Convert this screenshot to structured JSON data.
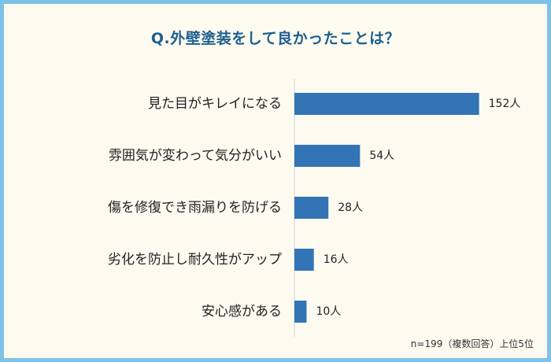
{
  "title": "Q.外壁塗装をして良かったことは？",
  "note": "n=199（複数回答）上位5位",
  "colors": {
    "bar": "#3274b6",
    "frame": "#7fc2e9",
    "background": "#fdfaf0",
    "title": "#1d5f8e"
  },
  "chart_data": {
    "type": "bar",
    "orientation": "horizontal",
    "categories": [
      "見た目がキレイになる",
      "雰囲気が変わって気分がいい",
      "傷を修復でき雨漏りを防げる",
      "劣化を防止し耐久性がアップ",
      "安心感がある"
    ],
    "values": [
      152,
      54,
      28,
      16,
      10
    ],
    "value_labels": [
      "152人",
      "54人",
      "28人",
      "16人",
      "10人"
    ],
    "xlim": [
      0,
      160
    ],
    "grid": false,
    "legend": "none"
  }
}
